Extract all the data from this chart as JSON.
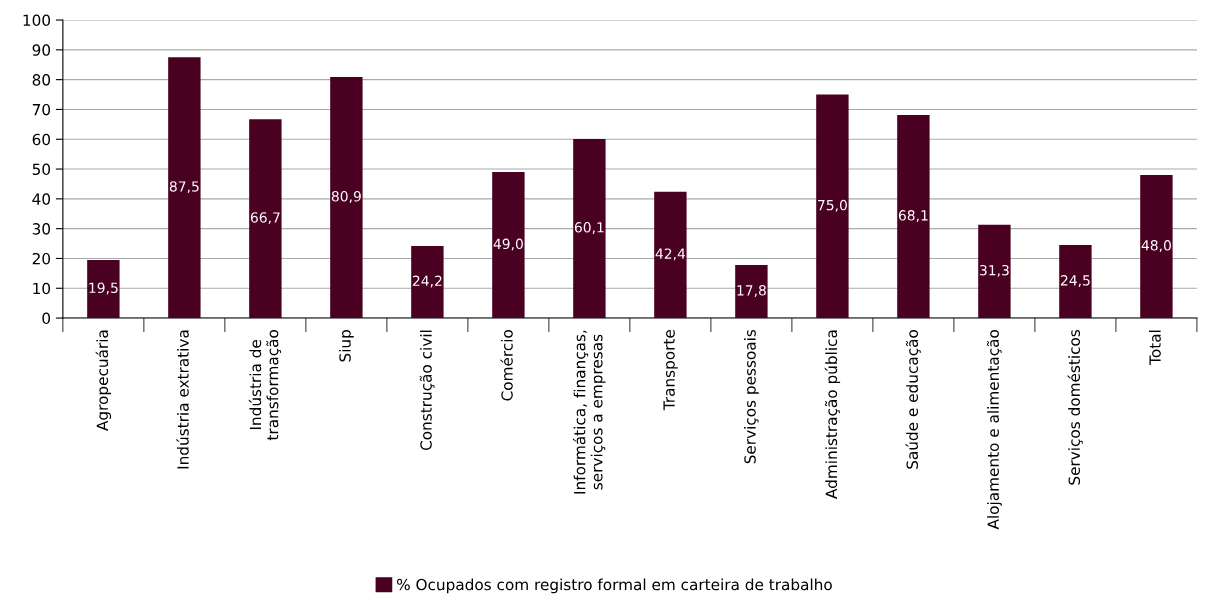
{
  "chart_data": {
    "type": "bar",
    "categories": [
      "Agropecuária",
      "Indústria extrativa",
      "Indústria de\ntransformação",
      "Siup",
      "Construção civil",
      "Comércio",
      "Informática, finanças,\nserviços a empresas",
      "Transporte",
      "Serviços pessoais",
      "Administração pública",
      "Saúde e educação",
      "Alojamento e alimentação",
      "Serviços domésticos",
      "Total"
    ],
    "series": [
      {
        "name": "% Ocupados com registro formal em carteira de trabalho",
        "color": "#4a0020",
        "values": [
          19.5,
          87.5,
          66.7,
          80.9,
          24.2,
          49.0,
          60.1,
          42.4,
          17.8,
          75.0,
          68.1,
          31.3,
          24.5,
          48.0
        ],
        "value_labels": [
          "19,5",
          "87,5",
          "66,7",
          "80,9",
          "24,2",
          "49,0",
          "60,1",
          "42,4",
          "17,8",
          "75,0",
          "68,1",
          "31,3",
          "24,5",
          "48,0"
        ]
      }
    ],
    "ylim": [
      0,
      100
    ],
    "yticks": [
      0,
      10,
      20,
      30,
      40,
      50,
      60,
      70,
      80,
      90,
      100
    ],
    "grid": "y",
    "legend": "bottom"
  }
}
